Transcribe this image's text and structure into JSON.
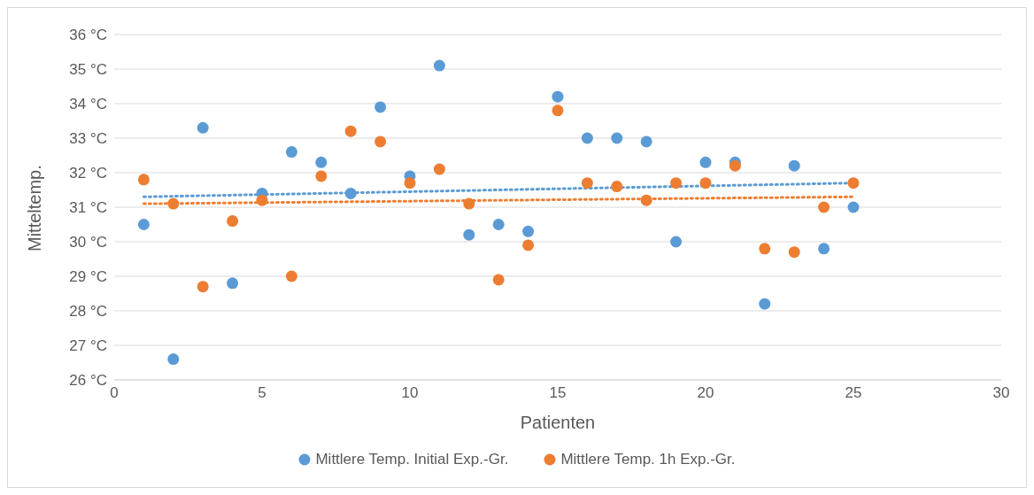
{
  "chart_data": {
    "type": "scatter",
    "xlabel": "Patienten",
    "ylabel": "Mitteltemp.",
    "xlim": [
      0,
      30
    ],
    "xticks": [
      0,
      5,
      10,
      15,
      20,
      25,
      30
    ],
    "ylim": [
      26,
      36
    ],
    "yticks": [
      {
        "value": 26,
        "label": "26 °C"
      },
      {
        "value": 27,
        "label": "27 °C"
      },
      {
        "value": 28,
        "label": "28 °C"
      },
      {
        "value": 29,
        "label": "29 °C"
      },
      {
        "value": 30,
        "label": "30 °C"
      },
      {
        "value": 31,
        "label": "31 °C"
      },
      {
        "value": 32,
        "label": "32 °C"
      },
      {
        "value": 33,
        "label": "33 °C"
      },
      {
        "value": 34,
        "label": "34 °C"
      },
      {
        "value": 35,
        "label": "35 °C"
      },
      {
        "value": 36,
        "label": "36 °C"
      }
    ],
    "grid": "y",
    "legend": "bottom",
    "x": [
      1,
      2,
      3,
      4,
      5,
      6,
      7,
      8,
      9,
      10,
      11,
      12,
      13,
      14,
      15,
      16,
      17,
      18,
      19,
      20,
      21,
      22,
      23,
      24,
      25
    ],
    "series": [
      {
        "name": "Mittlere Temp. Initial Exp.-Gr.",
        "color": "#5b9bd5",
        "marker": "circle",
        "values": [
          30.5,
          26.6,
          33.3,
          28.8,
          31.4,
          32.6,
          32.3,
          31.4,
          33.9,
          31.9,
          35.1,
          30.2,
          30.5,
          30.3,
          34.2,
          33.0,
          33.0,
          32.9,
          30.0,
          32.3,
          32.3,
          28.2,
          32.2,
          29.8,
          31.0
        ]
      },
      {
        "name": "Mittlere Temp. 1h Exp.-Gr.",
        "color": "#ed7d31",
        "marker": "circle",
        "values": [
          31.8,
          31.1,
          28.7,
          30.6,
          31.2,
          29.0,
          31.9,
          33.2,
          32.9,
          31.7,
          32.1,
          31.1,
          28.9,
          29.9,
          33.8,
          31.7,
          31.6,
          31.2,
          31.7,
          31.7,
          32.2,
          29.8,
          29.7,
          31.0,
          31.7
        ]
      },
      {
        "type": "line",
        "color": "#5b9bd5",
        "line_style": "dotted",
        "values": [
          31.3,
          null,
          null,
          null,
          null,
          null,
          null,
          null,
          null,
          null,
          null,
          null,
          null,
          null,
          null,
          null,
          null,
          null,
          null,
          null,
          null,
          null,
          null,
          null,
          31.7
        ]
      },
      {
        "type": "line",
        "color": "#ed7d31",
        "line_style": "dotted",
        "values": [
          31.1,
          null,
          null,
          null,
          null,
          null,
          null,
          null,
          null,
          null,
          null,
          null,
          null,
          null,
          null,
          null,
          null,
          null,
          null,
          null,
          null,
          null,
          null,
          null,
          31.3
        ]
      }
    ]
  }
}
